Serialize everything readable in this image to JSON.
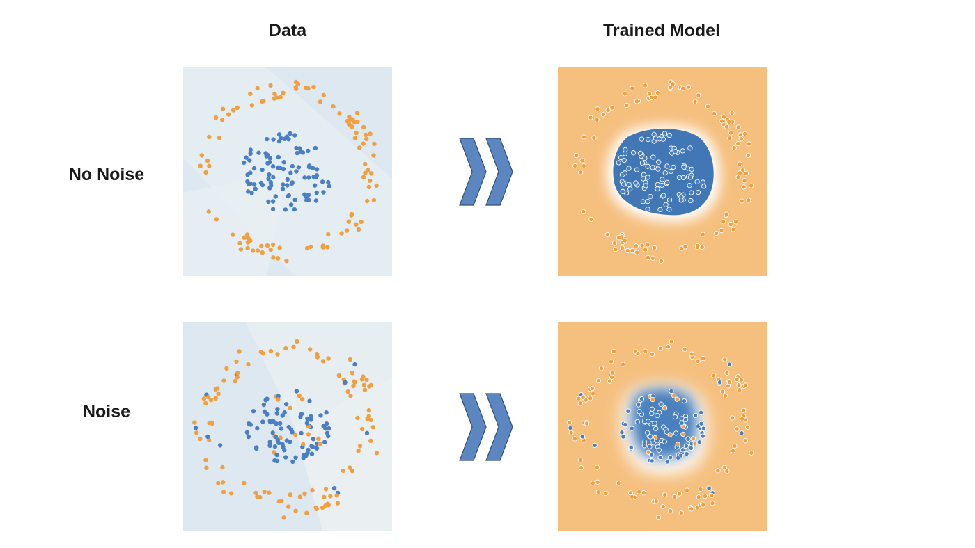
{
  "headers": {
    "data": "Data",
    "trained_model": "Trained Model"
  },
  "rows": {
    "no_noise": "No Noise",
    "noise": "Noise"
  },
  "colors": {
    "blue_point": "#4a7fc1",
    "orange_point": "#f0a040",
    "data_bg": "#dbe7ef",
    "model_bg": "#f5bf7e",
    "model_blue": "#3f78b8",
    "arrow": "#5b86bf",
    "arrow_edge": "#2f4f7a"
  },
  "icons": {
    "arrow": "double-chevron-right-icon"
  }
}
